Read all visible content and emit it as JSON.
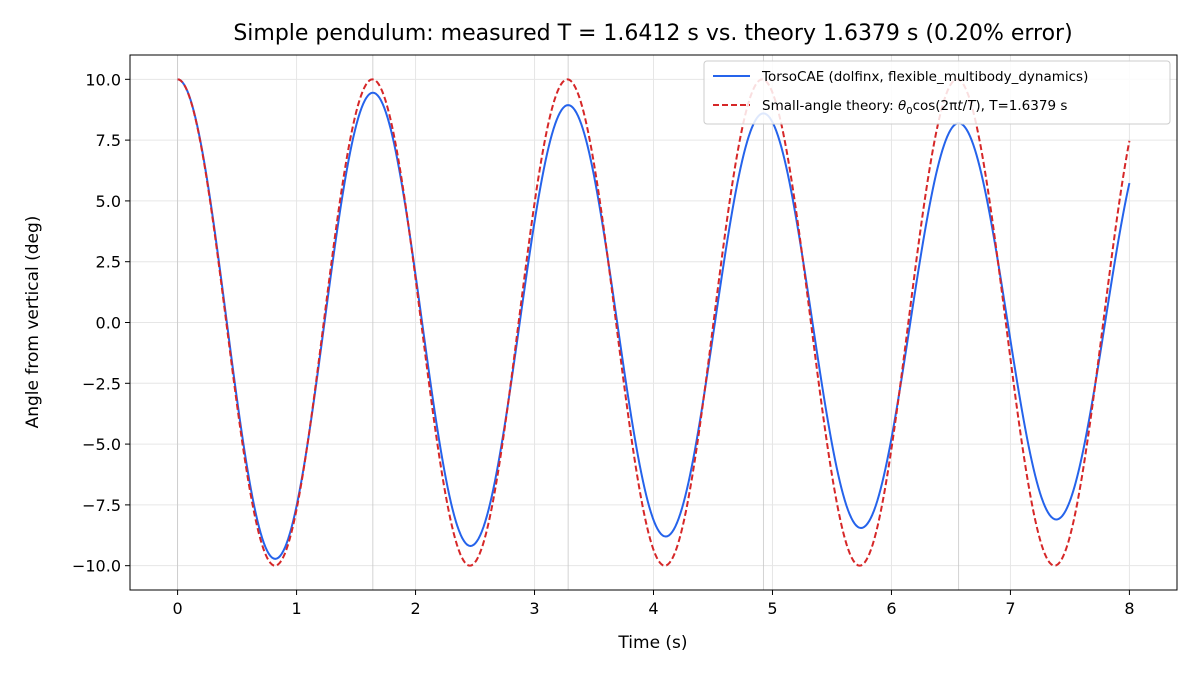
{
  "chart_data": {
    "type": "line",
    "title": "Simple pendulum: measured T = 1.6412 s vs. theory 1.6379 s (0.20% error)",
    "xlabel": "Time (s)",
    "ylabel": "Angle from vertical (deg)",
    "xlim": [
      -0.4,
      8.4
    ],
    "ylim": [
      -11.0,
      11.0
    ],
    "x_ticks": [
      0,
      1,
      2,
      3,
      4,
      5,
      6,
      7,
      8
    ],
    "x_tick_labels": [
      "0",
      "1",
      "2",
      "3",
      "4",
      "5",
      "6",
      "7",
      "8"
    ],
    "y_ticks": [
      10.0,
      7.5,
      5.0,
      2.5,
      0.0,
      -2.5,
      -5.0,
      -7.5,
      -10.0
    ],
    "y_tick_labels": [
      "10.0",
      "7.5",
      "5.0",
      "2.5",
      "0.0",
      "−2.5",
      "−5.0",
      "−7.5",
      "−10.0"
    ],
    "grid": true,
    "extra_vertical_gridlines_x": [
      0.0,
      1.6412,
      3.2824,
      4.9236,
      6.5648
    ],
    "legend_position": "top-right",
    "series": [
      {
        "name": "TorsoCAE (dolfinx, flexible_multibody_dynamics)",
        "color": "#2563eb",
        "line_style": "solid",
        "x": [
          0.0,
          0.8206,
          1.6412,
          2.4618,
          3.2824,
          4.103,
          4.9236,
          5.7442,
          6.5648,
          7.3854,
          8.0
        ],
        "y": [
          10.0,
          -9.72,
          9.45,
          -9.19,
          8.94,
          -8.8,
          8.6,
          -8.45,
          8.2,
          -8.1,
          5.6
        ]
      },
      {
        "name": "Small-angle theory: θ₀cos(2πt/T), T=1.6379 s",
        "color": "#d62728",
        "line_style": "dashed",
        "x": [
          0.0,
          0.81895,
          1.6379,
          2.45685,
          3.2758,
          4.09475,
          4.9137,
          5.73265,
          6.5516,
          7.37055,
          8.0
        ],
        "y": [
          10.0,
          -10.0,
          10.0,
          -10.0,
          10.0,
          -10.0,
          10.0,
          -10.0,
          10.0,
          -10.0,
          7.4
        ]
      }
    ],
    "legend_entries": [
      {
        "text": "TorsoCAE (dolfinx, flexible_multibody_dynamics)"
      },
      {
        "text_prefix": "Small-angle theory: ",
        "theta": "θ",
        "theta_sub": "0",
        "cos_open": "cos(2π",
        "t": "t",
        "slash": "/",
        "T": "T",
        "text_suffix": "), T=1.6379 s"
      }
    ]
  }
}
